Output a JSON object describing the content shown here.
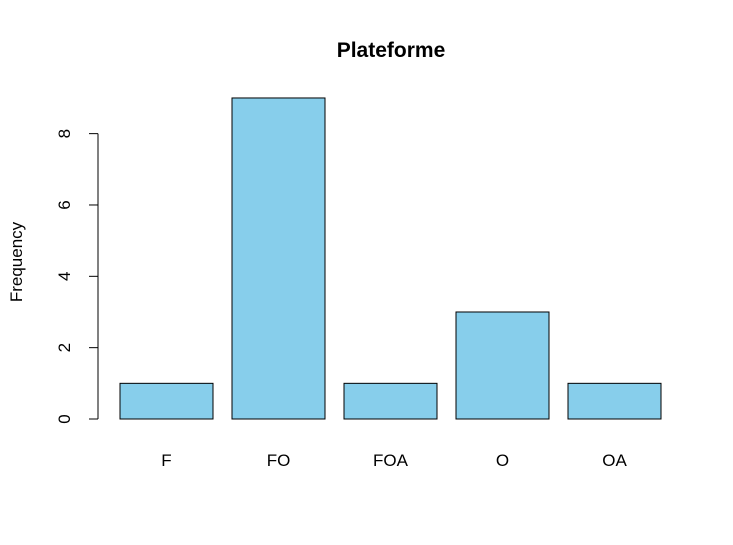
{
  "chart_data": {
    "type": "bar",
    "title": "Plateforme",
    "xlabel": "",
    "ylabel": "Frequency",
    "categories": [
      "F",
      "FO",
      "FOA",
      "O",
      "OA"
    ],
    "values": [
      1,
      9,
      1,
      3,
      1
    ],
    "ylim": [
      0,
      9
    ],
    "yticks": [
      0,
      2,
      4,
      6,
      8
    ],
    "bar_color": "#87CEEB",
    "grid": false
  }
}
